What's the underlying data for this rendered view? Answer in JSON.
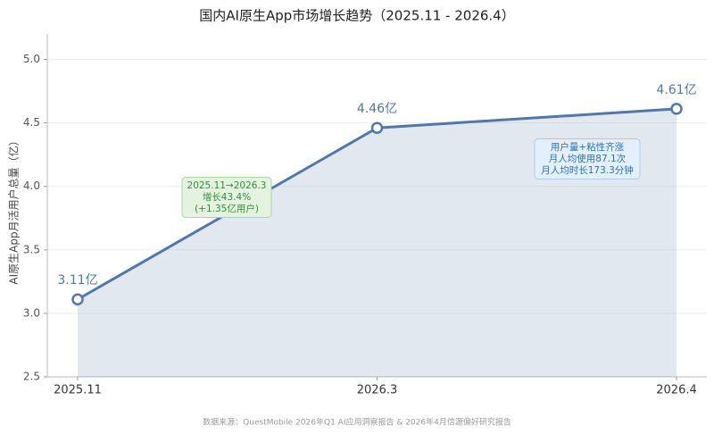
{
  "chart_data": {
    "type": "line",
    "title": "国内AI原生App市场增长趋势（2025.11 - 2026.4）",
    "y_label": "AI原生App月活用户总量（亿）",
    "categories": [
      "2025.11",
      "2026.3",
      "2026.4"
    ],
    "series": [
      {
        "name": "AI原生App月活用户总量",
        "color": "#5277a8",
        "values": [
          3.11,
          4.46,
          4.61
        ],
        "value_labels": [
          "3.11亿",
          "4.46亿",
          "4.61亿"
        ]
      }
    ],
    "ylim": [
      2.5,
      5.2
    ],
    "yticks": [
      2.5,
      {
        "value": 3,
        "label": "3.0"
      },
      3.5,
      {
        "value": 4,
        "label": "4.0"
      },
      4.5,
      {
        "value": 5,
        "label": "5.0"
      }
    ],
    "grid": true,
    "annotations": [
      {
        "lines": [
          "2025.11→2026.3",
          "增长43.4%",
          "(+1.35亿用户)"
        ],
        "color": "#3a8a3a"
      },
      {
        "lines": [
          "用户量+粘性齐涨",
          "月人均使用87.1次",
          "月人均时长173.3分钟"
        ],
        "color": "#2f6fb0"
      }
    ],
    "source": "数据来源：QuestMobile 2026年Q1 AI应用洞察报告 & 2026年4月信源偏好研究报告"
  }
}
